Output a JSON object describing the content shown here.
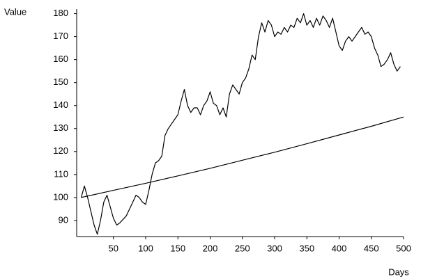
{
  "chart_data": {
    "type": "line",
    "ylabel": "Value",
    "xlabel": "Days",
    "xlim": [
      -7,
      500
    ],
    "ylim": [
      83,
      182
    ],
    "xticks": [
      50,
      100,
      150,
      200,
      250,
      300,
      350,
      400,
      450,
      500
    ],
    "yticks": [
      90,
      100,
      110,
      120,
      130,
      140,
      150,
      160,
      170,
      180
    ],
    "grid": false,
    "series": [
      {
        "color": "#000000",
        "x": [
          0,
          5,
          10,
          20,
          25,
          30,
          35,
          40,
          45,
          50,
          55,
          60,
          70,
          80,
          85,
          90,
          95,
          100,
          105,
          110,
          115,
          120,
          125,
          130,
          135,
          140,
          145,
          150,
          155,
          160,
          165,
          170,
          175,
          180,
          185,
          190,
          195,
          200,
          205,
          210,
          215,
          220,
          225,
          230,
          235,
          240,
          245,
          250,
          255,
          260,
          265,
          270,
          275,
          280,
          285,
          290,
          295,
          300,
          305,
          310,
          315,
          320,
          325,
          330,
          335,
          340,
          345,
          350,
          355,
          360,
          365,
          370,
          375,
          380,
          385,
          390,
          395,
          400,
          405,
          410,
          415,
          420,
          425,
          430,
          435,
          440,
          445,
          450,
          455,
          460,
          465,
          470,
          475,
          480,
          485,
          490,
          495
        ],
        "values": [
          100,
          105,
          100,
          88,
          84,
          90,
          98,
          101,
          96,
          91,
          88,
          89,
          92,
          98,
          101,
          100,
          98,
          97,
          103,
          110,
          115,
          116,
          118,
          127,
          130,
          132,
          134,
          136,
          142,
          147,
          140,
          137,
          139,
          139,
          136,
          140,
          142,
          146,
          141,
          140,
          136,
          139,
          135,
          145,
          149,
          147,
          145,
          150,
          152,
          156,
          162,
          160,
          170,
          176,
          172,
          177,
          175,
          170,
          172,
          171,
          174,
          172,
          175,
          174,
          178,
          176,
          180,
          175,
          177,
          174,
          178,
          175,
          179,
          177,
          174,
          178,
          172,
          166,
          164,
          168,
          170,
          168,
          170,
          172,
          174,
          171,
          172,
          170,
          165,
          162,
          157,
          158,
          160,
          163,
          158,
          155,
          157
        ]
      },
      {
        "color": "#000000",
        "x": [
          0,
          50,
          100,
          150,
          200,
          250,
          300,
          350,
          400,
          450,
          500
        ],
        "values": [
          100,
          103.1,
          106.2,
          109.4,
          112.7,
          116.2,
          119.7,
          123.4,
          127.2,
          131,
          135
        ]
      }
    ]
  }
}
